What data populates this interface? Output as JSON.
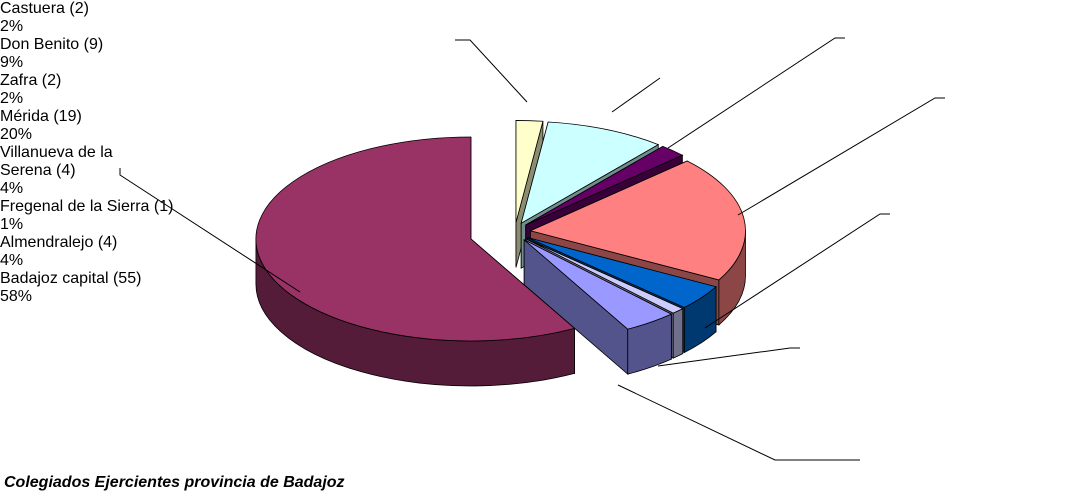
{
  "chart_data": {
    "type": "pie",
    "title": "Colegiados Ejercientes provincia de Badajoz",
    "categories": [
      "Castuera (2)",
      "Don Benito (9)",
      "Zafra (2)",
      "Mérida (19)",
      "Villanueva de la Serena (4)",
      "Fregenal de la Sierra (1)",
      "Almendralejo (4)",
      "Badajoz capital (55)"
    ],
    "values": [
      2,
      9,
      2,
      20,
      4,
      1,
      4,
      58
    ],
    "value_labels": [
      "2%",
      "9%",
      "2%",
      "20%",
      "4%",
      "1%",
      "4%",
      "58%"
    ],
    "colors": [
      "#ffffcc",
      "#ccffff",
      "#660066",
      "#ff8080",
      "#0066cc",
      "#ccccff",
      "#9999ff",
      "#993366"
    ]
  }
}
